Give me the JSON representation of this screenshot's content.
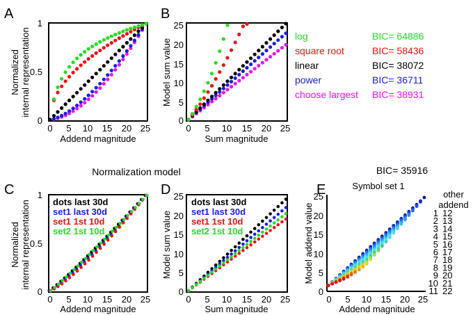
{
  "panels": {
    "A": {
      "label": "A",
      "ylabel_1": "Normalized",
      "ylabel_2": "internal representation",
      "xlabel": "Addend  magnitude",
      "yticks": [
        "0",
        "0.5",
        "1"
      ],
      "xticks": [
        "0",
        "5",
        "10",
        "15",
        "20",
        "25"
      ]
    },
    "B": {
      "label": "B",
      "ylabel": "Model sum value",
      "xlabel": "Sum magnitude",
      "yticks": [
        "0",
        "5",
        "10",
        "15",
        "20",
        "25"
      ],
      "xticks": [
        "0",
        "5",
        "10",
        "15",
        "20",
        "25"
      ]
    },
    "C": {
      "label": "C",
      "ylabel_1": "Normalized",
      "ylabel_2": "internal representation",
      "xlabel": "Addend  magnitude",
      "yticks": [
        "0",
        "0.5",
        "1"
      ],
      "xticks": [
        "0",
        "5",
        "10",
        "15",
        "20",
        "25"
      ],
      "legend": [
        "dots last 30d",
        "set1 last 30d",
        "set1 1st 10d",
        "set2 1st 10d"
      ]
    },
    "D": {
      "label": "D",
      "ylabel": "Model sum value",
      "xlabel": "Sum magnitude",
      "yticks": [
        "0",
        "5",
        "10",
        "15",
        "20",
        "25"
      ],
      "xticks": [
        "0",
        "5",
        "10",
        "15",
        "20",
        "25"
      ],
      "legend": [
        "dots last 30d",
        "set1 last 30d",
        "set1 1st 10d",
        "set2 1st 10d"
      ]
    },
    "E": {
      "label": "E",
      "title": "Symbol set  1",
      "ylabel": "Model addend value",
      "xlabel": "Addend  magnitude",
      "yticks": [
        "0",
        "5",
        "10",
        "15",
        "20",
        "25"
      ],
      "xticks": [
        "0",
        "5",
        "10",
        "15",
        "20",
        "25"
      ],
      "side_header_1": "other",
      "side_header_2": "addend"
    }
  },
  "models": [
    {
      "name": "log",
      "bic": "BIC= 64886",
      "color": "#22dd22"
    },
    {
      "name": "square root",
      "bic": "BIC= 58436",
      "color": "#ee1111"
    },
    {
      "name": "linear",
      "bic": "BIC= 38072",
      "color": "#000000"
    },
    {
      "name": "power",
      "bic": "BIC= 36711",
      "color": "#1a1aee"
    },
    {
      "name": "choose largest",
      "bic": "BIC= 38931",
      "color": "#ee11ee"
    }
  ],
  "normalization_title": "Normalization model",
  "normalization_bic": "BIC= 35916",
  "legend_colors": [
    "#000000",
    "#1a1aee",
    "#ee1111",
    "#22dd22"
  ],
  "other_addend": {
    "left": [
      "1",
      "2",
      "3",
      "4",
      "5",
      "6",
      "7",
      "8",
      "9",
      "10",
      "11"
    ],
    "right": [
      "12",
      "13",
      "14",
      "15",
      "16",
      "17",
      "18",
      "19",
      "20",
      "21",
      "22"
    ],
    "left_colors": [
      "#1010a0",
      "#1530c0",
      "#2050e0",
      "#2070f0",
      "#2090f0",
      "#20a8f0",
      "#30c0f0",
      "#40d0f0",
      "#50e0f0",
      "#40e8e8",
      "#30d0d0"
    ],
    "right_colors": [
      "#40d080",
      "#70d860",
      "#a0e040",
      "#d0e020",
      "#f0d020",
      "#f8b010",
      "#f89010",
      "#f87010",
      "#f05010",
      "#e83010",
      "#e01010"
    ]
  },
  "chart_data": [
    {
      "type": "scatter",
      "panel": "A",
      "xlabel": "Addend  magnitude",
      "ylabel": "Normalized internal representation",
      "xlim": [
        0,
        25
      ],
      "ylim": [
        0,
        1
      ],
      "series": [
        {
          "name": "log",
          "values_rule": "log(1+x)/log(26)"
        },
        {
          "name": "square root",
          "values_rule": "sqrt(x/25)"
        },
        {
          "name": "linear",
          "values_rule": "x/25"
        },
        {
          "name": "power",
          "values_rule": "(x/25)^1.5"
        },
        {
          "name": "choose largest",
          "values_rule": "(x/25)^1.7"
        }
      ]
    },
    {
      "type": "scatter",
      "panel": "B",
      "xlabel": "Sum magnitude",
      "ylabel": "Model sum value",
      "xlim": [
        0,
        25
      ],
      "ylim": [
        0,
        25
      ],
      "series": [
        {
          "name": "log",
          "x": [
            0,
            1,
            2,
            3,
            4,
            5,
            6,
            7,
            8,
            9,
            10
          ],
          "y": [
            0,
            1.5,
            3.4,
            5.3,
            7.4,
            9.6,
            12,
            14.8,
            17.8,
            21,
            24.6
          ]
        },
        {
          "name": "square root",
          "x": [
            0,
            1,
            2,
            3,
            4,
            5,
            6,
            7,
            8,
            9,
            10,
            11,
            12,
            13,
            14,
            15
          ],
          "y": [
            0,
            1.2,
            2.6,
            4,
            5.6,
            7.2,
            8.8,
            10.6,
            12.4,
            14.2,
            16.1,
            18.1,
            20.1,
            22.2,
            24.3,
            24.9
          ]
        },
        {
          "name": "linear",
          "y_at_25": 25
        },
        {
          "name": "power",
          "y_at_25": 22.5
        },
        {
          "name": "choose largest",
          "y_at_25": 19.5
        }
      ]
    },
    {
      "type": "scatter",
      "panel": "C",
      "xlabel": "Addend  magnitude",
      "ylabel": "Normalized internal representation",
      "xlim": [
        0,
        25
      ],
      "ylim": [
        0,
        1
      ],
      "series": [
        {
          "name": "dots last 30d",
          "exponent": 1.1
        },
        {
          "name": "set1 last 30d",
          "exponent": 1.18
        },
        {
          "name": "set1 1st 10d",
          "exponent": 1.24
        },
        {
          "name": "set2 1st 10d",
          "exponent": 1.06
        }
      ]
    },
    {
      "type": "scatter",
      "panel": "D",
      "xlabel": "Sum magnitude",
      "ylabel": "Model sum value",
      "xlim": [
        0,
        25
      ],
      "ylim": [
        0,
        25
      ],
      "series": [
        {
          "name": "dots last 30d",
          "y_at_25": 24
        },
        {
          "name": "set1 last 30d",
          "y_at_25": 21.8
        },
        {
          "name": "set1 1st 10d",
          "y_at_25": 18.8
        },
        {
          "name": "set2 1st 10d",
          "y_at_25": 20.2
        }
      ]
    },
    {
      "type": "scatter",
      "panel": "E",
      "title": "Symbol set  1",
      "xlabel": "Addend  magnitude",
      "ylabel": "Model addend value",
      "xlim": [
        0,
        25
      ],
      "ylim": [
        0,
        25
      ],
      "other_addend": [
        1,
        2,
        3,
        4,
        5,
        6,
        7,
        8,
        9,
        10,
        11,
        12,
        13,
        14,
        15,
        16,
        17,
        18,
        19,
        20,
        21,
        22
      ]
    }
  ]
}
